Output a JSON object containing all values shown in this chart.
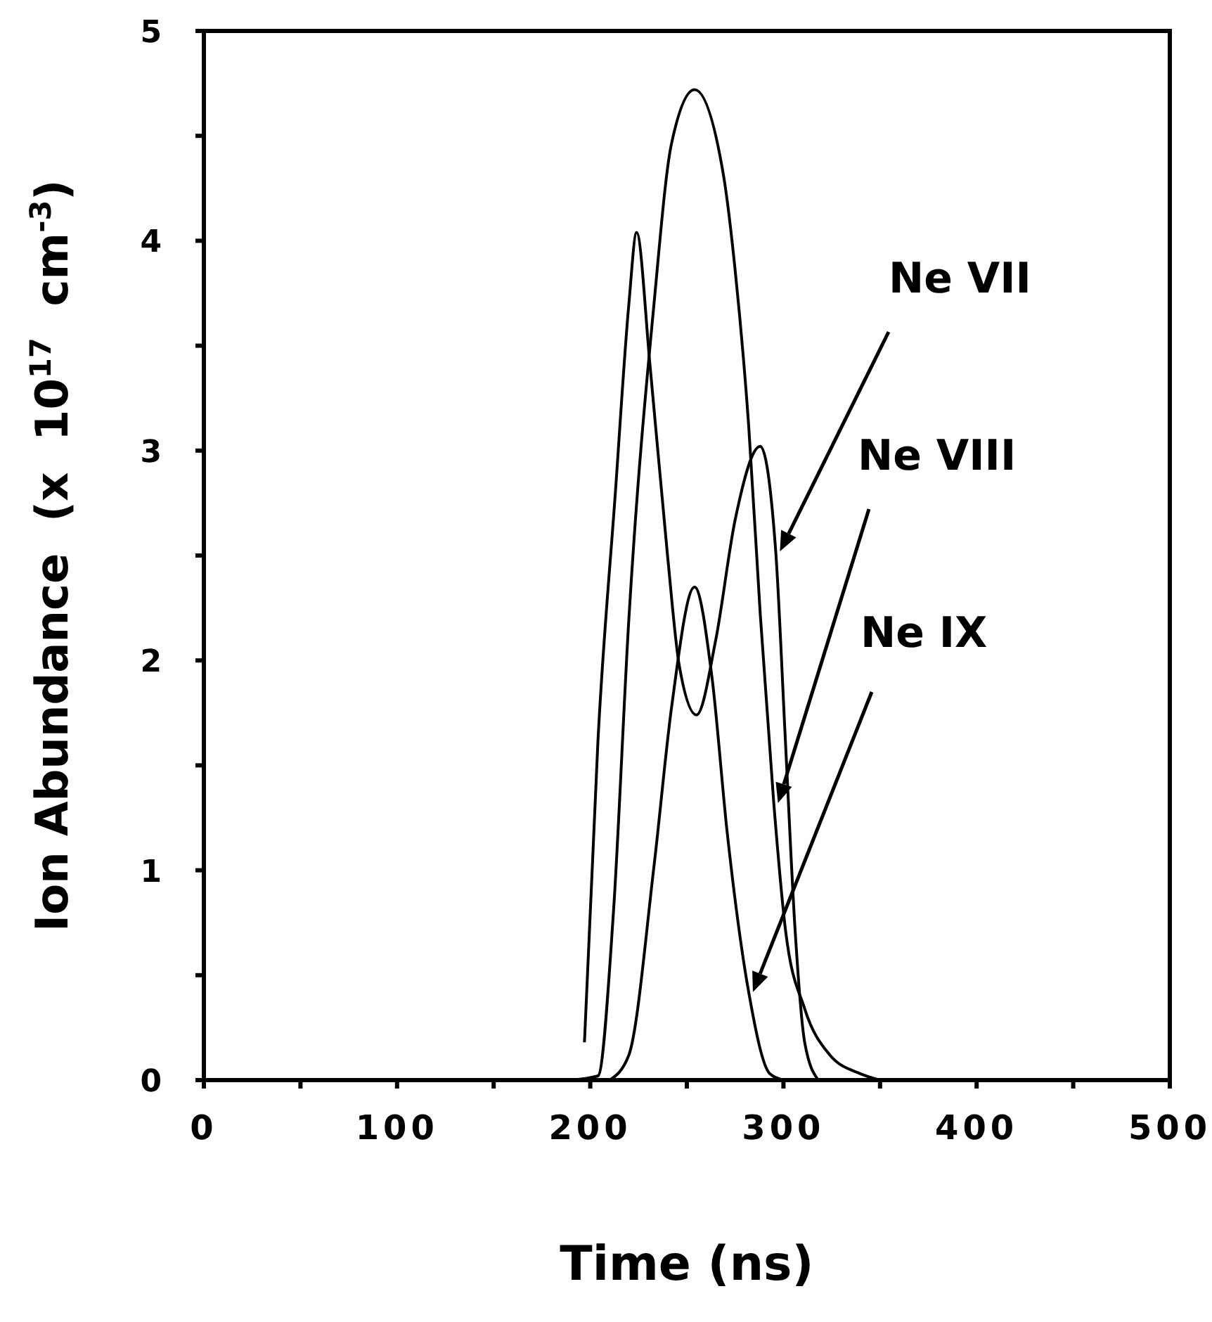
{
  "chart_data": {
    "type": "line",
    "xlabel": "Time  (ns)",
    "ylabel": "Ion Abundance  (x  10$^{17}$  cm$^{-3}$)",
    "xlim": [
      0,
      500
    ],
    "ylim": [
      0,
      5
    ],
    "xticks": [
      0,
      {
        "value": 50,
        "label": null
      },
      100,
      {
        "value": 150,
        "label": null
      },
      200,
      {
        "value": 250,
        "label": null
      },
      300,
      {
        "value": 350,
        "label": null
      },
      400,
      {
        "value": 450,
        "label": null
      },
      500
    ],
    "yticks": [
      0,
      {
        "value": 0.5,
        "label": null
      },
      1,
      {
        "value": 1.5,
        "label": null
      },
      2,
      {
        "value": 2.5,
        "label": null
      },
      3,
      {
        "value": 3.5,
        "label": null
      },
      4,
      {
        "value": 4.5,
        "label": null
      },
      5
    ],
    "grid": false,
    "marker": "none",
    "line_style": "solid",
    "series": [
      {
        "name": "Ne VII",
        "color": "#000000",
        "x": [
          197,
          204,
          213,
          220,
          224,
          231,
          240,
          246,
          255,
          265,
          275,
          288,
          296,
          301,
          306,
          311,
          318
        ],
        "values": [
          0.18,
          1.62,
          2.8,
          3.7,
          4.04,
          3.4,
          2.5,
          1.98,
          1.74,
          2.1,
          2.67,
          3.02,
          2.52,
          1.62,
          0.72,
          0.18,
          0
        ]
      },
      {
        "name": "Ne VIII",
        "color": "#000000",
        "x": [
          190,
          204,
          212,
          220,
          233,
          242,
          254,
          269,
          275,
          282,
          288,
          295,
          301,
          311,
          324,
          340,
          350
        ],
        "values": [
          0,
          0.02,
          0.8,
          2.2,
          3.7,
          4.46,
          4.72,
          4.31,
          3.86,
          3.12,
          2.22,
          1.32,
          0.72,
          0.34,
          0.12,
          0.03,
          0
        ]
      },
      {
        "name": "Ne IX",
        "color": "#000000",
        "x": [
          210,
          220,
          233,
          242,
          254,
          263,
          271,
          282,
          293,
          300
        ],
        "values": [
          0,
          0.12,
          1.02,
          1.77,
          2.35,
          1.92,
          1.17,
          0.42,
          0.03,
          0
        ]
      }
    ]
  }
}
